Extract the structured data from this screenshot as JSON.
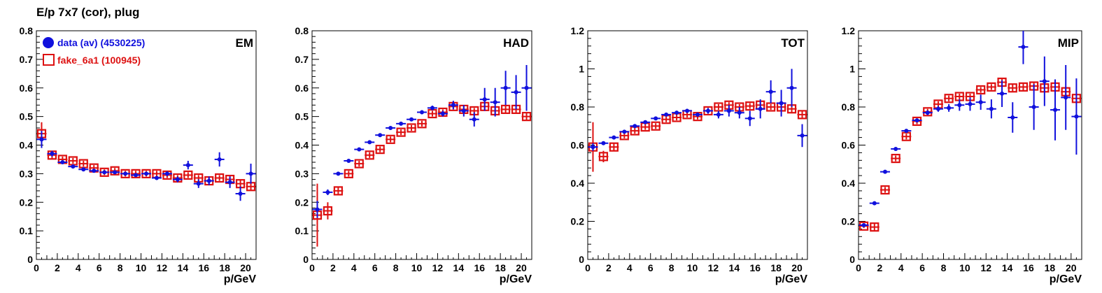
{
  "title": "E/p 7x7 (cor), plug",
  "colors": {
    "data": "#1010dd",
    "fake": "#dd1111",
    "axis": "#000000"
  },
  "legend": [
    {
      "label": "data (av) (4530225)",
      "marker": "filled-circle",
      "color": "#1010dd"
    },
    {
      "label": "fake_6a1 (100945)",
      "marker": "open-square",
      "color": "#dd1111"
    }
  ],
  "chart_data": [
    {
      "type": "scatter",
      "title": "EM",
      "xlabel": "p/GeV",
      "ylabel": "",
      "xlim": [
        0,
        21
      ],
      "ylim": [
        0,
        0.8
      ],
      "xticks": [
        0,
        2,
        4,
        6,
        8,
        10,
        12,
        14,
        16,
        18,
        20
      ],
      "yticks": [
        0,
        0.1,
        0.2,
        0.3,
        0.4,
        0.5,
        0.6,
        0.7,
        0.8
      ],
      "ytick_labels": [
        "0",
        "0.1",
        "0.2",
        "0.3",
        "0.4",
        "0.5",
        "0.6",
        "0.7",
        "0.8"
      ],
      "series": [
        {
          "name": "data (av) (4530225)",
          "x": [
            0.5,
            1.5,
            2.5,
            3.5,
            4.5,
            5.5,
            6.5,
            7.5,
            8.5,
            9.5,
            10.5,
            11.5,
            12.5,
            13.5,
            14.5,
            15.5,
            16.5,
            17.5,
            18.5,
            19.5,
            20.5
          ],
          "y": [
            0.42,
            0.37,
            0.34,
            0.325,
            0.315,
            0.31,
            0.305,
            0.305,
            0.3,
            0.295,
            0.3,
            0.285,
            0.3,
            0.28,
            0.33,
            0.265,
            0.275,
            0.35,
            0.27,
            0.23,
            0.3
          ],
          "err": [
            0.03,
            0.01,
            0.005,
            0.005,
            0.005,
            0.005,
            0.005,
            0.005,
            0.005,
            0.005,
            0.006,
            0.007,
            0.008,
            0.01,
            0.015,
            0.015,
            0.015,
            0.025,
            0.02,
            0.025,
            0.035
          ]
        },
        {
          "name": "fake_6a1 (100945)",
          "x": [
            0.5,
            1.5,
            2.5,
            3.5,
            4.5,
            5.5,
            6.5,
            7.5,
            8.5,
            9.5,
            10.5,
            11.5,
            12.5,
            13.5,
            14.5,
            15.5,
            16.5,
            17.5,
            18.5,
            19.5,
            20.5
          ],
          "y": [
            0.44,
            0.365,
            0.35,
            0.345,
            0.335,
            0.32,
            0.305,
            0.31,
            0.3,
            0.3,
            0.3,
            0.3,
            0.295,
            0.285,
            0.295,
            0.285,
            0.275,
            0.285,
            0.28,
            0.265,
            0.255
          ],
          "err": [
            0.04,
            0.015,
            0.01,
            0.01,
            0.01,
            0.01,
            0.01,
            0.01,
            0.01,
            0.01,
            0.01,
            0.01,
            0.01,
            0.01,
            0.01,
            0.01,
            0.01,
            0.01,
            0.012,
            0.012,
            0.015
          ]
        }
      ]
    },
    {
      "type": "scatter",
      "title": "HAD",
      "xlabel": "p/GeV",
      "ylabel": "",
      "xlim": [
        0,
        21
      ],
      "ylim": [
        0,
        0.8
      ],
      "xticks": [
        0,
        2,
        4,
        6,
        8,
        10,
        12,
        14,
        16,
        18,
        20
      ],
      "yticks": [
        0,
        0.1,
        0.2,
        0.3,
        0.4,
        0.5,
        0.6,
        0.7,
        0.8
      ],
      "ytick_labels": [
        "0",
        "0.1",
        "0.2",
        "0.3",
        "0.4",
        "0.5",
        "0.6",
        "0.7",
        "0.8"
      ],
      "series": [
        {
          "name": "data (av) (4530225)",
          "x": [
            0.5,
            1.5,
            2.5,
            3.5,
            4.5,
            5.5,
            6.5,
            7.5,
            8.5,
            9.5,
            10.5,
            11.5,
            12.5,
            13.5,
            14.5,
            15.5,
            16.5,
            17.5,
            18.5,
            19.5,
            20.5
          ],
          "y": [
            0.175,
            0.235,
            0.3,
            0.345,
            0.385,
            0.41,
            0.435,
            0.46,
            0.475,
            0.49,
            0.515,
            0.53,
            0.51,
            0.54,
            0.52,
            0.49,
            0.56,
            0.55,
            0.6,
            0.585,
            0.6
          ],
          "err": [
            0.03,
            0.01,
            0.006,
            0.005,
            0.005,
            0.005,
            0.005,
            0.005,
            0.005,
            0.006,
            0.007,
            0.008,
            0.01,
            0.015,
            0.02,
            0.025,
            0.04,
            0.05,
            0.06,
            0.06,
            0.08
          ]
        },
        {
          "name": "fake_6a1 (100945)",
          "x": [
            0.5,
            1.5,
            2.5,
            3.5,
            4.5,
            5.5,
            6.5,
            7.5,
            8.5,
            9.5,
            10.5,
            11.5,
            12.5,
            13.5,
            14.5,
            15.5,
            16.5,
            17.5,
            18.5,
            19.5,
            20.5
          ],
          "y": [
            0.155,
            0.17,
            0.24,
            0.3,
            0.335,
            0.365,
            0.385,
            0.42,
            0.445,
            0.46,
            0.475,
            0.51,
            0.515,
            0.535,
            0.525,
            0.52,
            0.535,
            0.52,
            0.525,
            0.525,
            0.5
          ],
          "err": [
            0.11,
            0.03,
            0.015,
            0.01,
            0.01,
            0.01,
            0.01,
            0.01,
            0.01,
            0.01,
            0.01,
            0.01,
            0.01,
            0.01,
            0.01,
            0.01,
            0.012,
            0.012,
            0.012,
            0.015,
            0.015
          ]
        }
      ]
    },
    {
      "type": "scatter",
      "title": "TOT",
      "xlabel": "p/GeV",
      "ylabel": "",
      "xlim": [
        0,
        21
      ],
      "ylim": [
        0,
        1.2
      ],
      "xticks": [
        0,
        2,
        4,
        6,
        8,
        10,
        12,
        14,
        16,
        18,
        20
      ],
      "yticks": [
        0,
        0.2,
        0.4,
        0.6,
        0.8,
        1,
        1.2
      ],
      "ytick_labels": [
        "0",
        "0.2",
        "0.4",
        "0.6",
        "0.8",
        "1",
        "1.2"
      ],
      "series": [
        {
          "name": "data (av) (4530225)",
          "x": [
            0.5,
            1.5,
            2.5,
            3.5,
            4.5,
            5.5,
            6.5,
            7.5,
            8.5,
            9.5,
            10.5,
            11.5,
            12.5,
            13.5,
            14.5,
            15.5,
            16.5,
            17.5,
            18.5,
            19.5,
            20.5
          ],
          "y": [
            0.59,
            0.61,
            0.64,
            0.67,
            0.7,
            0.72,
            0.74,
            0.76,
            0.77,
            0.78,
            0.76,
            0.78,
            0.76,
            0.78,
            0.77,
            0.74,
            0.79,
            0.88,
            0.82,
            0.9,
            0.65
          ],
          "err": [
            0.02,
            0.01,
            0.008,
            0.007,
            0.007,
            0.007,
            0.007,
            0.008,
            0.01,
            0.01,
            0.01,
            0.015,
            0.02,
            0.03,
            0.03,
            0.04,
            0.05,
            0.06,
            0.07,
            0.1,
            0.06
          ]
        },
        {
          "name": "fake_6a1 (100945)",
          "x": [
            0.5,
            1.5,
            2.5,
            3.5,
            4.5,
            5.5,
            6.5,
            7.5,
            8.5,
            9.5,
            10.5,
            11.5,
            12.5,
            13.5,
            14.5,
            15.5,
            16.5,
            17.5,
            18.5,
            19.5,
            20.5
          ],
          "y": [
            0.59,
            0.54,
            0.59,
            0.65,
            0.675,
            0.695,
            0.7,
            0.735,
            0.745,
            0.76,
            0.75,
            0.78,
            0.8,
            0.81,
            0.8,
            0.805,
            0.81,
            0.8,
            0.8,
            0.79,
            0.76
          ],
          "err": [
            0.13,
            0.03,
            0.02,
            0.015,
            0.015,
            0.015,
            0.015,
            0.015,
            0.015,
            0.015,
            0.015,
            0.015,
            0.015,
            0.015,
            0.015,
            0.015,
            0.015,
            0.015,
            0.02,
            0.02,
            0.02
          ]
        }
      ]
    },
    {
      "type": "scatter",
      "title": "MIP",
      "xlabel": "p/GeV",
      "ylabel": "",
      "xlim": [
        0,
        21
      ],
      "ylim": [
        0,
        1.2
      ],
      "xticks": [
        0,
        2,
        4,
        6,
        8,
        10,
        12,
        14,
        16,
        18,
        20
      ],
      "yticks": [
        0,
        0.2,
        0.4,
        0.6,
        0.8,
        1,
        1.2
      ],
      "ytick_labels": [
        "0",
        "0.2",
        "0.4",
        "0.6",
        "0.8",
        "1",
        "1.2"
      ],
      "series": [
        {
          "name": "data (av) (4530225)",
          "x": [
            0.5,
            1.5,
            2.5,
            3.5,
            4.5,
            5.5,
            6.5,
            7.5,
            8.5,
            9.5,
            10.5,
            11.5,
            12.5,
            13.5,
            14.5,
            15.5,
            16.5,
            17.5,
            18.5,
            19.5,
            20.5
          ],
          "y": [
            0.18,
            0.295,
            0.46,
            0.58,
            0.675,
            0.73,
            0.77,
            0.79,
            0.795,
            0.81,
            0.815,
            0.825,
            0.79,
            0.87,
            0.745,
            1.115,
            0.8,
            0.935,
            0.785,
            0.85,
            0.75
          ],
          "err": [
            0.005,
            0.005,
            0.006,
            0.007,
            0.008,
            0.01,
            0.012,
            0.015,
            0.02,
            0.03,
            0.035,
            0.04,
            0.05,
            0.07,
            0.08,
            0.09,
            0.12,
            0.13,
            0.16,
            0.17,
            0.2
          ]
        },
        {
          "name": "fake_6a1 (100945)",
          "x": [
            0.5,
            1.5,
            2.5,
            3.5,
            4.5,
            5.5,
            6.5,
            7.5,
            8.5,
            9.5,
            10.5,
            11.5,
            12.5,
            13.5,
            14.5,
            15.5,
            16.5,
            17.5,
            18.5,
            19.5,
            20.5
          ],
          "y": [
            0.175,
            0.17,
            0.365,
            0.53,
            0.645,
            0.725,
            0.775,
            0.815,
            0.845,
            0.855,
            0.855,
            0.89,
            0.905,
            0.93,
            0.9,
            0.905,
            0.91,
            0.9,
            0.905,
            0.88,
            0.845
          ],
          "err": [
            0.01,
            0.02,
            0.015,
            0.015,
            0.015,
            0.015,
            0.015,
            0.015,
            0.015,
            0.015,
            0.015,
            0.015,
            0.015,
            0.02,
            0.02,
            0.02,
            0.02,
            0.02,
            0.025,
            0.025,
            0.025
          ]
        }
      ]
    }
  ]
}
